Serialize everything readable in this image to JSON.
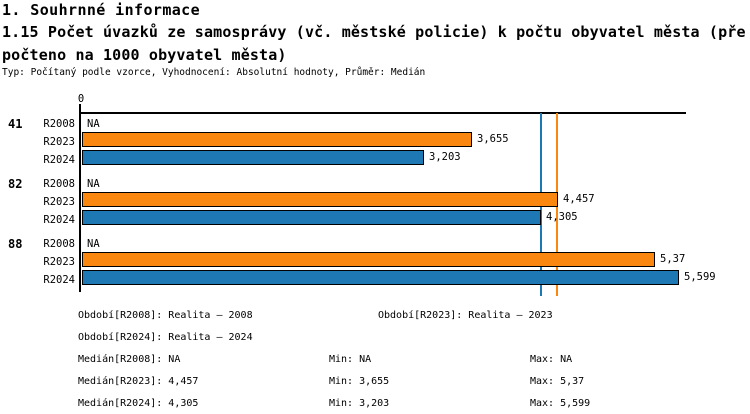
{
  "header": {
    "section_title": "1. Souhrnné informace",
    "indicator_title_line1": "1.15 Počet úvazků ze samosprávy (vč. městské policie) k počtu obyvatel města (pře",
    "indicator_title_line2": "počteno na 1000 obyvatel města)",
    "meta_line": "Typ: Počítaný podle vzorce, Vyhodnocení: Absolutní hodnoty, Průměr: Medián"
  },
  "colors": {
    "bar_r2023": "#FA870F",
    "bar_r2024": "#1E78B4",
    "median_r2023": "#FA870F",
    "median_r2024": "#1E78B4",
    "axis": "#000000"
  },
  "chart_data": {
    "type": "bar",
    "orientation": "horizontal",
    "title": "1.15 Počet úvazků ze samosprávy (vč. městské policie) k počtu obyvatel města (přepočteno na 1000 obyvatel města)",
    "xlabel": "",
    "ylabel": "",
    "xlim": [
      0,
      5.66
    ],
    "zero_tick_label": "0",
    "grid": false,
    "legend_position": "none",
    "series_names": [
      "R2008",
      "R2023",
      "R2024"
    ],
    "groups": [
      {
        "id": "41",
        "rows": [
          {
            "label": "R2008",
            "value": null,
            "display": "NA",
            "series": "R2008"
          },
          {
            "label": "R2023",
            "value": 3.655,
            "display": "3,655",
            "series": "R2023"
          },
          {
            "label": "R2024",
            "value": 3.203,
            "display": "3,203",
            "series": "R2024"
          }
        ]
      },
      {
        "id": "82",
        "rows": [
          {
            "label": "R2008",
            "value": null,
            "display": "NA",
            "series": "R2008"
          },
          {
            "label": "R2023",
            "value": 4.457,
            "display": "4,457",
            "series": "R2023"
          },
          {
            "label": "R2024",
            "value": 4.305,
            "display": "4,305",
            "series": "R2024"
          }
        ]
      },
      {
        "id": "88",
        "rows": [
          {
            "label": "R2008",
            "value": null,
            "display": "NA",
            "series": "R2008"
          },
          {
            "label": "R2023",
            "value": 5.37,
            "display": "5,37",
            "series": "R2023"
          },
          {
            "label": "R2024",
            "value": 5.599,
            "display": "5,599",
            "series": "R2024"
          }
        ]
      }
    ],
    "median_lines": [
      {
        "name": "median-r2023",
        "value": 4.457,
        "series": "R2023"
      },
      {
        "name": "median-r2024",
        "value": 4.305,
        "series": "R2024"
      }
    ]
  },
  "stats": {
    "rows": [
      {
        "col1": "Období[R2008]: Realita – 2008",
        "col2": "Období[R2023]: Realita – 2023",
        "col3": ""
      },
      {
        "col1": "Období[R2024]: Realita – 2024",
        "col2": "",
        "col3": ""
      },
      {
        "col1": "Medián[R2008]: NA",
        "col2": "Min: NA",
        "col3": "Max: NA"
      },
      {
        "col1": "Medián[R2023]: 4,457",
        "col2": "Min: 3,655",
        "col3": "Max: 5,37"
      },
      {
        "col1": "Medián[R2024]: 4,305",
        "col2": "Min: 3,203",
        "col3": "Max: 5,599"
      }
    ]
  }
}
